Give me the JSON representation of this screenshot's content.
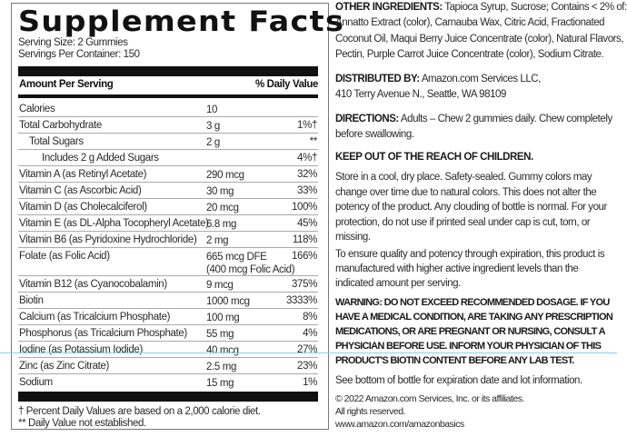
{
  "facts": {
    "title": "Supplement Facts",
    "serving_size": "Serving Size: 2 Gummies",
    "servings_per_container": "Servings Per Container: 150",
    "header_amount": "Amount Per Serving",
    "header_dv": "% Daily Value",
    "rows": [
      {
        "name": "Calories",
        "amount": "10",
        "dv": ""
      },
      {
        "name": "Total Carbohydrate",
        "amount": "3 g",
        "dv": "1%†"
      },
      {
        "name": "Total Sugars",
        "amount": "2 g",
        "dv": "**"
      },
      {
        "name": "Includes 2 g Added Sugars",
        "amount": "",
        "dv": "4%†"
      },
      {
        "name": "Vitamin A (as Retinyl Acetate)",
        "amount": "290 mcg",
        "dv": "32%"
      },
      {
        "name": "Vitamin C (as Ascorbic Acid)",
        "amount": "30 mg",
        "dv": "33%"
      },
      {
        "name": "Vitamin D (as Cholecalciferol)",
        "amount": "20 mcg",
        "dv": "100%"
      },
      {
        "name": "Vitamin E (as DL-Alpha Tocopheryl Acetate)",
        "amount": "6.8 mg",
        "dv": "45%"
      },
      {
        "name": "Vitamin B6 (as Pyridoxine Hydrochloride)",
        "amount": "2 mg",
        "dv": "118%"
      },
      {
        "name": "Folate (as Folic Acid)",
        "amount": "665 mcg DFE",
        "amount2": "(400 mcg Folic Acid)",
        "dv": "166%"
      },
      {
        "name": "Vitamin B12 (as Cyanocobalamin)",
        "amount": "9 mcg",
        "dv": "375%"
      },
      {
        "name": "Biotin",
        "amount": "1000 mcg",
        "dv": "3333%"
      },
      {
        "name": "Calcium (as Tricalcium Phosphate)",
        "amount": "100 mg",
        "dv": "8%"
      },
      {
        "name": "Phosphorus (as Tricalcium Phosphate)",
        "amount": "55 mg",
        "dv": "4%"
      },
      {
        "name": "Iodine (as Potassium Iodide)",
        "amount": "40 mcg",
        "dv": "27%"
      },
      {
        "name": "Zinc (as Zinc Citrate)",
        "amount": "2.5 mg",
        "dv": "23%"
      },
      {
        "name": "Sodium",
        "amount": "15 mg",
        "dv": "1%"
      }
    ],
    "footnote1": "† Percent Daily Values are based on a 2,000 calorie diet.",
    "footnote2": "** Daily Value not established."
  },
  "info": {
    "other_label": "OTHER INGREDIENTS:",
    "other_lines": [
      " Tapioca Syrup, Sucrose; Contains < 2% of:",
      "Annatto Extract (color), Carnauba Wax, Citric Acid, Fractionated",
      "Coconut Oil, Maqui Berry Juice Concentrate (color), Natural Flavors,",
      "Pectin, Purple Carrot Juice Concentrate (color), Sodium Citrate."
    ],
    "dist_label": "DISTRIBUTED BY:",
    "dist_lines": [
      " Amazon.com Services LLC,",
      "410 Terry Avenue N., Seattle, WA 98109"
    ],
    "dir_label": "DIRECTIONS:",
    "dir_lines": [
      " Adults – Chew 2 gummies daily. Chew completely",
      "before swallowing."
    ],
    "keep_out": "KEEP OUT OF THE REACH OF CHILDREN.",
    "store_lines": [
      "Store in a cool, dry place. Safety-sealed. Gummy colors may",
      "change over time due to natural colors. This does not alter the",
      "potency of the product. Any clouding of bottle is normal. For your",
      "protection, do not use if printed seal under cap is cut, torn, or",
      "missing."
    ],
    "ensure_lines": [
      "To ensure quality and potency through expiration, this product is",
      "manufactured with higher active ingredient levels than the",
      "indicated amount per serving."
    ],
    "warning_lines": [
      "WARNING:  DO NOT EXCEED RECOMMENDED DOSAGE. IF YOU",
      "HAVE A MEDICAL CONDITION, ARE TAKING ANY PRESCRIPTION",
      "MEDICATIONS, OR ARE PREGNANT OR NURSING, CONSULT A",
      "PHYSICIAN BEFORE USE. INFORM YOUR PHYSICIAN OF THIS",
      "PRODUCT'S BIOTIN CONTENT BEFORE ANY LAB TEST."
    ],
    "see_bottom": "See bottom of bottle for expiration date and lot information.",
    "copyright_lines": [
      "© 2022 Amazon.com Services, Inc. or its affiliates.",
      "All rights reserved.",
      "www.amazon.com/amazonbasics"
    ]
  }
}
